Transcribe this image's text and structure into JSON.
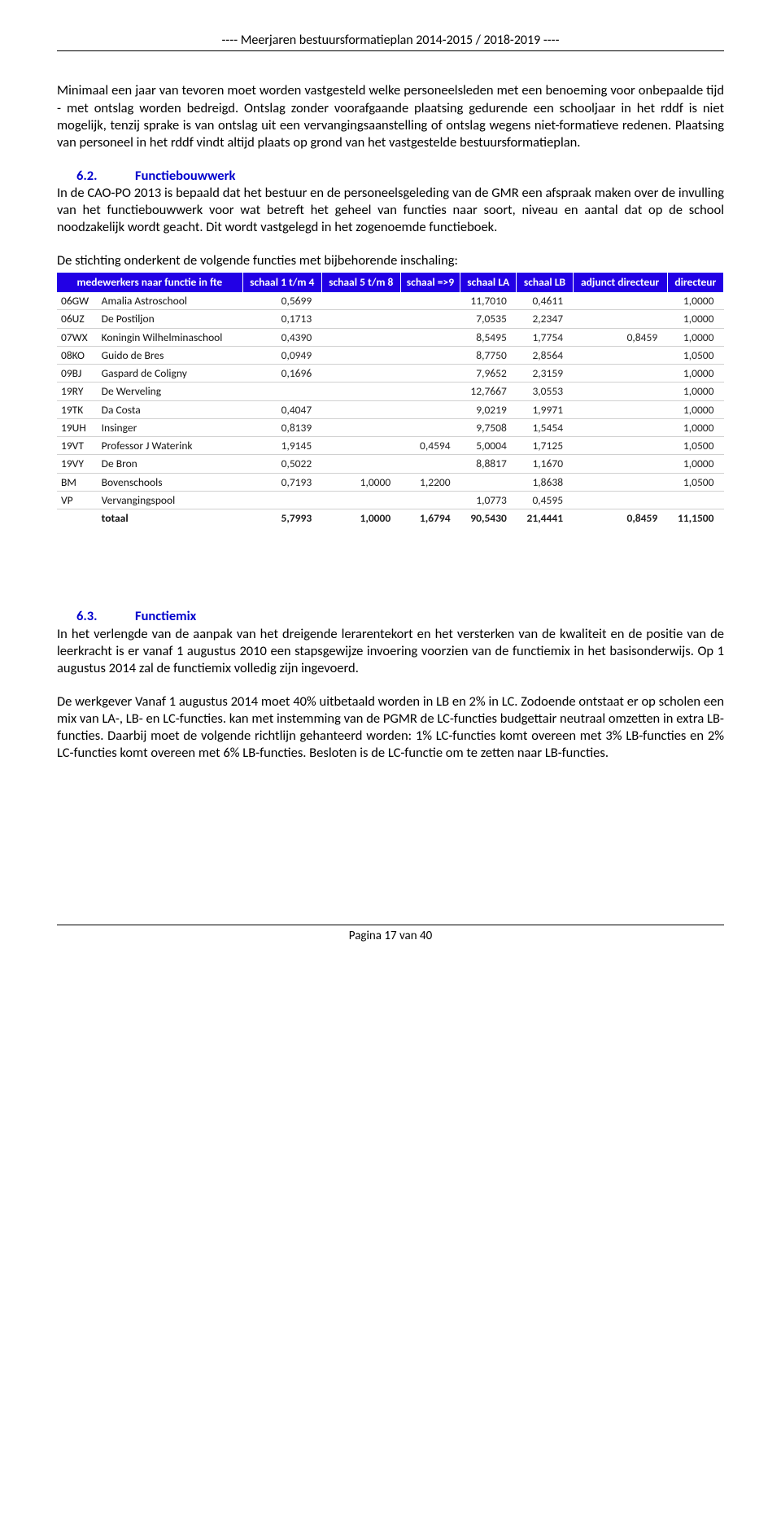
{
  "header": "---- Meerjaren bestuursformatieplan 2014-2015 / 2018-2019 ----",
  "paragraphs": {
    "p1": "Minimaal een jaar van tevoren moet worden vastgesteld welke personeelsleden met een benoeming voor onbepaalde tijd - met ontslag worden bedreigd. Ontslag zonder voorafgaande plaatsing gedurende een schooljaar in het rddf is niet mogelijk, tenzij sprake is van ontslag uit een vervangingsaanstelling of ontslag wegens niet-formatieve redenen. Plaatsing van personeel in het rddf vindt altijd plaats op grond van het vastgestelde bestuursformatieplan.",
    "p2": "In de CAO-PO 2013 is bepaald dat het bestuur en de personeelsgeleding van de GMR een afspraak maken over de invulling van het functiebouwwerk voor wat betreft het geheel van functies naar soort, niveau en aantal dat op de school noodzakelijk wordt geacht. Dit wordt vastgelegd in het zogenoemde functieboek.",
    "p3": "De stichting onderkent de volgende functies met bijbehorende inschaling:",
    "p4": "In het verlengde van de aanpak van het dreigende lerarentekort en het versterken van de kwaliteit en de positie van de leerkracht is er vanaf 1 augustus 2010 een stapsgewijze invoering voorzien van de functiemix in het basisonderwijs. Op 1 augustus 2014 zal de functiemix volledig zijn ingevoerd.",
    "p5": "De werkgever Vanaf 1 augustus 2014 moet 40% uitbetaald worden in LB en 2% in LC. Zodoende ontstaat er op scholen een mix van LA-, LB- en LC-functies. kan met instemming van de PGMR de LC-functies budgettair neutraal omzetten in extra LB-functies. Daarbij moet de volgende richtlijn gehanteerd worden: 1% LC-functies komt overeen met 3% LB-functies en 2% LC-functies komt overeen met 6% LB-functies. Besloten is de LC-functie om te zetten naar LB-functies."
  },
  "sections": {
    "s62": {
      "num": "6.2.",
      "title": "Functiebouwwerk"
    },
    "s63": {
      "num": "6.3.",
      "title": "Functiemix"
    }
  },
  "table": {
    "headers": [
      "medewerkers naar functie in fte",
      "schaal 1 t/m 4",
      "schaal 5 t/m 8",
      "schaal =>9",
      "schaal LA",
      "schaal LB",
      "adjunct directeur",
      "directeur"
    ],
    "rows": [
      {
        "code": "06GW",
        "name": "Amalia Astroschool",
        "c1": "0,5699",
        "c2": "",
        "c3": "",
        "c4": "11,7010",
        "c5": "0,4611",
        "c6": "",
        "c7": "1,0000"
      },
      {
        "code": "06UZ",
        "name": "De Postiljon",
        "c1": "0,1713",
        "c2": "",
        "c3": "",
        "c4": "7,0535",
        "c5": "2,2347",
        "c6": "",
        "c7": "1,0000"
      },
      {
        "code": "07WX",
        "name": "Koningin Wilhelminaschool",
        "c1": "0,4390",
        "c2": "",
        "c3": "",
        "c4": "8,5495",
        "c5": "1,7754",
        "c6": "0,8459",
        "c7": "1,0000"
      },
      {
        "code": "08KO",
        "name": "Guido de Bres",
        "c1": "0,0949",
        "c2": "",
        "c3": "",
        "c4": "8,7750",
        "c5": "2,8564",
        "c6": "",
        "c7": "1,0500"
      },
      {
        "code": "09BJ",
        "name": "Gaspard de Coligny",
        "c1": "0,1696",
        "c2": "",
        "c3": "",
        "c4": "7,9652",
        "c5": "2,3159",
        "c6": "",
        "c7": "1,0000"
      },
      {
        "code": "19RY",
        "name": "De Werveling",
        "c1": "",
        "c2": "",
        "c3": "",
        "c4": "12,7667",
        "c5": "3,0553",
        "c6": "",
        "c7": "1,0000"
      },
      {
        "code": "19TK",
        "name": "Da Costa",
        "c1": "0,4047",
        "c2": "",
        "c3": "",
        "c4": "9,0219",
        "c5": "1,9971",
        "c6": "",
        "c7": "1,0000"
      },
      {
        "code": "19UH",
        "name": "Insinger",
        "c1": "0,8139",
        "c2": "",
        "c3": "",
        "c4": "9,7508",
        "c5": "1,5454",
        "c6": "",
        "c7": "1,0000"
      },
      {
        "code": "19VT",
        "name": "Professor J Waterink",
        "c1": "1,9145",
        "c2": "",
        "c3": "0,4594",
        "c4": "5,0004",
        "c5": "1,7125",
        "c6": "",
        "c7": "1,0500"
      },
      {
        "code": "19VY",
        "name": "De Bron",
        "c1": "0,5022",
        "c2": "",
        "c3": "",
        "c4": "8,8817",
        "c5": "1,1670",
        "c6": "",
        "c7": "1,0000"
      },
      {
        "code": "BM",
        "name": "Bovenschools",
        "c1": "0,7193",
        "c2": "1,0000",
        "c3": "1,2200",
        "c4": "",
        "c5": "1,8638",
        "c6": "",
        "c7": "1,0500"
      },
      {
        "code": "VP",
        "name": "Vervangingspool",
        "c1": "",
        "c2": "",
        "c3": "",
        "c4": "1,0773",
        "c5": "0,4595",
        "c6": "",
        "c7": ""
      }
    ],
    "total": {
      "code": "",
      "name": "totaal",
      "c1": "5,7993",
      "c2": "1,0000",
      "c3": "1,6794",
      "c4": "90,5430",
      "c5": "21,4441",
      "c6": "0,8459",
      "c7": "11,1500"
    }
  },
  "footer": "Pagina 17 van 40"
}
